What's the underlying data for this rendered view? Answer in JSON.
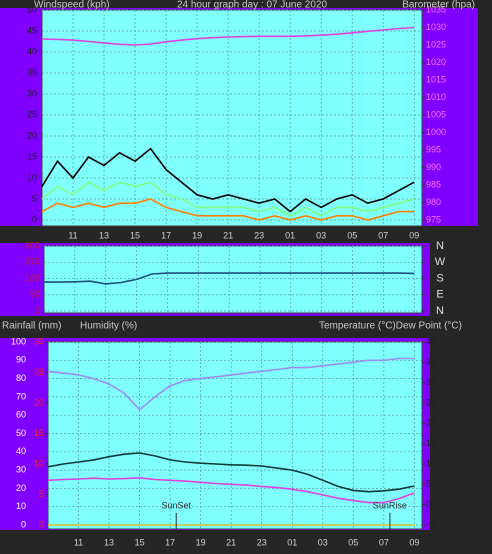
{
  "chart_data": [
    {
      "type": "line",
      "title": "24 hour graph day : 07 June 2020",
      "ylabel": "Windspeed (kph)",
      "y2label": "Barometer (hpa)",
      "x": [
        0,
        1,
        2,
        3,
        4,
        5,
        6,
        7,
        8,
        9,
        10,
        11,
        12,
        13,
        14,
        15,
        16,
        17,
        18,
        19,
        20,
        21,
        22,
        23,
        24
      ],
      "xlim": [
        0,
        24.5
      ],
      "xticks": [
        {
          "value": 2,
          "label": "11"
        },
        {
          "value": 4,
          "label": "13"
        },
        {
          "value": 6,
          "label": "15"
        },
        {
          "value": 8,
          "label": "17"
        },
        {
          "value": 10,
          "label": "19"
        },
        {
          "value": 12,
          "label": "21"
        },
        {
          "value": 14,
          "label": "23"
        },
        {
          "value": 16,
          "label": "01"
        },
        {
          "value": 18,
          "label": "03"
        },
        {
          "value": 20,
          "label": "05"
        },
        {
          "value": 22,
          "label": "07"
        },
        {
          "value": 24,
          "label": "09"
        }
      ],
      "ylim": [
        0,
        50
      ],
      "yticks": [
        0,
        5,
        10,
        15,
        20,
        25,
        30,
        35,
        40,
        45,
        50
      ],
      "y2lim": [
        975,
        1035
      ],
      "y2ticks": [
        975,
        980,
        985,
        990,
        995,
        1000,
        1005,
        1010,
        1015,
        1020,
        1025,
        1030,
        1035
      ],
      "series": [
        {
          "color": "#000000",
          "values": [
            8,
            14,
            10,
            15,
            13,
            16,
            14,
            17,
            12,
            9,
            6,
            5,
            6,
            5,
            4,
            5,
            2,
            5,
            3,
            5,
            6,
            4,
            5,
            7,
            9
          ]
        },
        {
          "color": "#80ff80",
          "values": [
            5,
            8,
            6,
            9,
            7,
            9,
            8,
            9,
            6,
            5,
            3,
            3,
            3,
            3,
            2,
            3,
            1,
            3,
            1,
            3,
            3,
            2,
            3,
            4,
            5
          ]
        },
        {
          "color": "#ff8000",
          "values": [
            2,
            4,
            3,
            4,
            3,
            4,
            4,
            5,
            3,
            2,
            1,
            1,
            1,
            1,
            0,
            1,
            0,
            1,
            0,
            1,
            1,
            0,
            1,
            2,
            2
          ]
        },
        {
          "color": "#e040e0",
          "axis": "y2",
          "values": [
            1026.7,
            1026.6,
            1026.4,
            1026,
            1025.6,
            1025.2,
            1025,
            1025.3,
            1025.9,
            1026.4,
            1026.8,
            1027.1,
            1027.3,
            1027.4,
            1027.5,
            1027.5,
            1027.5,
            1027.6,
            1027.8,
            1028.1,
            1028.5,
            1028.9,
            1029.3,
            1029.7,
            1030
          ]
        }
      ],
      "grid": true
    },
    {
      "type": "line",
      "x": [
        0,
        1,
        2,
        3,
        4,
        5,
        6,
        7,
        8,
        9,
        10,
        11,
        12,
        13,
        14,
        15,
        16,
        17,
        18,
        19,
        20,
        21,
        22,
        23,
        24
      ],
      "xlim": [
        0,
        24.5
      ],
      "ylim": [
        0,
        360
      ],
      "yticks": [
        0,
        90,
        180,
        270,
        360
      ],
      "y2lim": [
        0,
        360
      ],
      "y2ticks": [
        {
          "value": 0,
          "label": "N"
        },
        {
          "value": 90,
          "label": "E"
        },
        {
          "value": 180,
          "label": "S"
        },
        {
          "value": 270,
          "label": "W"
        },
        {
          "value": 360,
          "label": "N"
        }
      ],
      "series": [
        {
          "color": "#1f4f7f",
          "values": [
            160,
            160,
            162,
            165,
            150,
            158,
            175,
            205,
            210,
            210,
            210,
            210,
            210,
            210,
            210,
            210,
            210,
            210,
            210,
            210,
            210,
            210,
            210,
            210,
            208
          ]
        }
      ],
      "grid": true
    },
    {
      "type": "line",
      "ylabel": "Humidity (%)",
      "y2label": "Temperature (°C)Dew Point (°C)",
      "y3label": "Rainfall (mm)",
      "x": [
        0,
        1,
        2,
        3,
        4,
        5,
        6,
        7,
        8,
        9,
        10,
        11,
        12,
        13,
        14,
        15,
        16,
        17,
        18,
        19,
        20,
        21,
        22,
        23,
        24
      ],
      "xlim": [
        0,
        24.5
      ],
      "xticks": [
        {
          "value": 2,
          "label": "11"
        },
        {
          "value": 4,
          "label": "13"
        },
        {
          "value": 6,
          "label": "15"
        },
        {
          "value": 8,
          "label": "17"
        },
        {
          "value": 10,
          "label": "19"
        },
        {
          "value": 12,
          "label": "21"
        },
        {
          "value": 14,
          "label": "23"
        },
        {
          "value": 16,
          "label": "01"
        },
        {
          "value": 18,
          "label": "03"
        },
        {
          "value": 20,
          "label": "05"
        },
        {
          "value": 22,
          "label": "07"
        },
        {
          "value": 24,
          "label": "09"
        }
      ],
      "ylim": [
        0,
        100
      ],
      "yticks": [
        0,
        10,
        20,
        30,
        40,
        50,
        60,
        70,
        80,
        90,
        100
      ],
      "y2lim": [
        -5,
        40
      ],
      "y2ticks": [
        -5,
        0,
        5,
        10,
        15,
        20,
        25,
        30,
        35,
        40
      ],
      "y3lim": [
        0,
        30
      ],
      "y3ticks": [
        0,
        5,
        10,
        15,
        20,
        25,
        30
      ],
      "series": [
        {
          "color": "#9c8cf0",
          "values": [
            84,
            83,
            82,
            80,
            77,
            72,
            63,
            70,
            76,
            79,
            80,
            81,
            82,
            83,
            84,
            85,
            86,
            86,
            87,
            88,
            89,
            90,
            90,
            91,
            91
          ]
        },
        {
          "color": "#103838",
          "axis": "y2",
          "values": [
            9.3,
            10,
            10.5,
            11,
            11.8,
            12.4,
            12.7,
            12,
            11,
            10.5,
            10.2,
            10,
            9.8,
            9.7,
            9.5,
            9,
            8.5,
            7.5,
            6,
            4.5,
            3.5,
            3.2,
            3.4,
            3.8,
            4.6
          ]
        },
        {
          "color": "#e040e0",
          "axis": "y2",
          "values": [
            6,
            6.2,
            6.3,
            6.5,
            6.3,
            6.4,
            6.6,
            6.2,
            6,
            5.8,
            5.5,
            5.2,
            5,
            4.8,
            4.5,
            4.2,
            3.8,
            3.2,
            2.4,
            1.6,
            1,
            0.5,
            0.5,
            1.5,
            2.9
          ]
        },
        {
          "color": "#e0c020",
          "axis": "y3",
          "values": [
            0,
            0,
            0,
            0,
            0,
            0,
            0,
            0,
            0,
            0,
            0,
            0,
            0,
            0,
            0,
            0,
            0,
            0,
            0,
            0,
            0,
            0,
            0,
            0,
            0
          ]
        }
      ],
      "annotations": [
        {
          "text": "SunSet",
          "x": 8.4
        },
        {
          "text": "SunRise",
          "x": 22.4
        }
      ],
      "grid": true
    }
  ]
}
